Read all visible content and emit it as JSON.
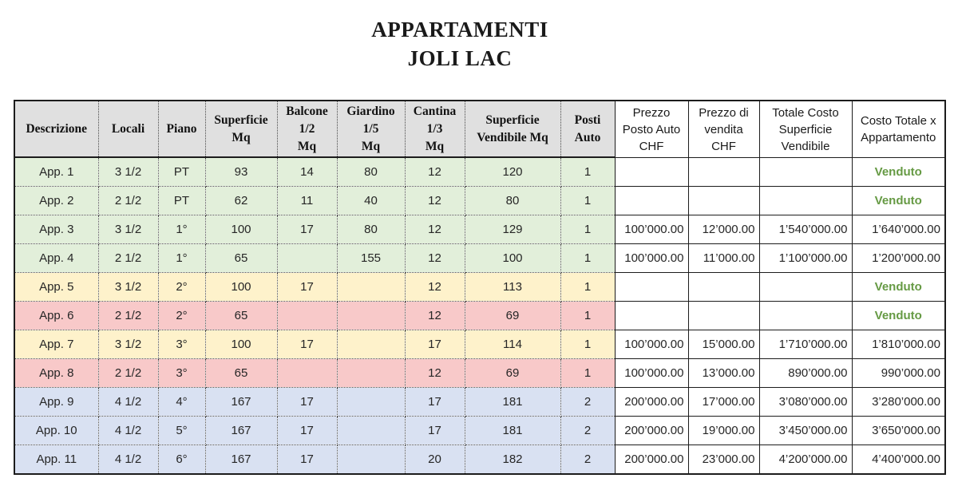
{
  "title": {
    "line1": "APPARTAMENTI",
    "line2": "JOLI LAC"
  },
  "table": {
    "sold_label": "Venduto",
    "columns": [
      {
        "key": "descrizione",
        "label": "Descrizione"
      },
      {
        "key": "locali",
        "label": "Locali"
      },
      {
        "key": "piano",
        "label": "Piano"
      },
      {
        "key": "superficie-mq",
        "label": "Superficie\nMq"
      },
      {
        "key": "balcone-mq",
        "label": "Balcone\n1/2\nMq"
      },
      {
        "key": "giardino-mq",
        "label": "Giardino\n1/5\nMq"
      },
      {
        "key": "cantina-mq",
        "label": "Cantina\n1/3\nMq"
      },
      {
        "key": "superficie-vendibile",
        "label": "Superficie\nVendibile Mq"
      },
      {
        "key": "posti-auto",
        "label": "Posti\nAuto"
      },
      {
        "key": "prezzo-posto-auto",
        "label": "Prezzo\nPosto Auto\nCHF"
      },
      {
        "key": "prezzo-di-vendita",
        "label": "Prezzo di\nvendita\nCHF"
      },
      {
        "key": "totale-costo-superficie",
        "label": "Totale Costo\nSuperficie\nVendibile"
      },
      {
        "key": "costo-totale-appartamento",
        "label": "Costo Totale x\nAppartamento"
      }
    ],
    "rows": [
      {
        "color": "green",
        "cells": [
          "App. 1",
          "3 1/2",
          "PT",
          "93",
          "14",
          "80",
          "12",
          "120",
          "1",
          "",
          "",
          "",
          "Venduto"
        ]
      },
      {
        "color": "green",
        "cells": [
          "App. 2",
          "2 1/2",
          "PT",
          "62",
          "11",
          "40",
          "12",
          "80",
          "1",
          "",
          "",
          "",
          "Venduto"
        ]
      },
      {
        "color": "green",
        "cells": [
          "App. 3",
          "3 1/2",
          "1°",
          "100",
          "17",
          "80",
          "12",
          "129",
          "1",
          "100’000.00",
          "12’000.00",
          "1’540’000.00",
          "1’640’000.00"
        ]
      },
      {
        "color": "green",
        "cells": [
          "App. 4",
          "2 1/2",
          "1°",
          "65",
          "",
          "155",
          "12",
          "100",
          "1",
          "100’000.00",
          "11’000.00",
          "1’100’000.00",
          "1’200’000.00"
        ]
      },
      {
        "color": "yellow",
        "cells": [
          "App. 5",
          "3 1/2",
          "2°",
          "100",
          "17",
          "",
          "12",
          "113",
          "1",
          "",
          "",
          "",
          "Venduto"
        ]
      },
      {
        "color": "pink",
        "cells": [
          "App. 6",
          "2 1/2",
          "2°",
          "65",
          "",
          "",
          "12",
          "69",
          "1",
          "",
          "",
          "",
          "Venduto"
        ]
      },
      {
        "color": "yellow",
        "cells": [
          "App. 7",
          "3 1/2",
          "3°",
          "100",
          "17",
          "",
          "17",
          "114",
          "1",
          "100’000.00",
          "15’000.00",
          "1’710’000.00",
          "1’810’000.00"
        ]
      },
      {
        "color": "pink",
        "cells": [
          "App. 8",
          "2 1/2",
          "3°",
          "65",
          "",
          "",
          "12",
          "69",
          "1",
          "100’000.00",
          "13’000.00",
          "890’000.00",
          "990’000.00"
        ]
      },
      {
        "color": "blue",
        "cells": [
          "App. 9",
          "4 1/2",
          "4°",
          "167",
          "17",
          "",
          "17",
          "181",
          "2",
          "200’000.00",
          "17’000.00",
          "3’080’000.00",
          "3’280’000.00"
        ]
      },
      {
        "color": "blue",
        "cells": [
          "App. 10",
          "4 1/2",
          "5°",
          "167",
          "17",
          "",
          "17",
          "181",
          "2",
          "200’000.00",
          "19’000.00",
          "3’450’000.00",
          "3’650’000.00"
        ]
      },
      {
        "color": "blue",
        "cells": [
          "App. 11",
          "4 1/2",
          "6°",
          "167",
          "17",
          "",
          "20",
          "182",
          "2",
          "200’000.00",
          "23’000.00",
          "4’200’000.00",
          "4’400’000.00"
        ]
      }
    ]
  },
  "colors": {
    "header_bg": "#e0e0e0",
    "row_green": "#e2efda",
    "row_yellow": "#fef2cb",
    "row_pink": "#f8c9c9",
    "row_blue": "#d9e1f2",
    "sold_text": "#669a44"
  }
}
